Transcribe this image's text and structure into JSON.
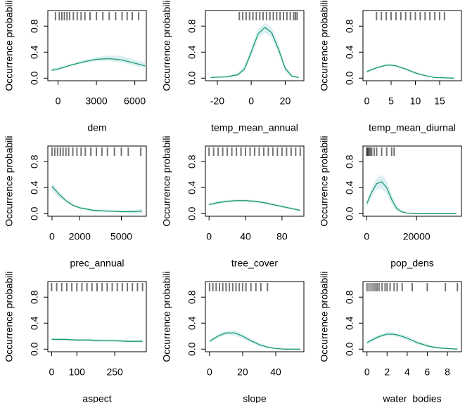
{
  "chart_data": [
    {
      "type": "line",
      "xlabel": "dem",
      "ylabel": "Occurrence probabili",
      "x": [
        -500,
        0,
        1000,
        2000,
        3000,
        4000,
        5000,
        6000,
        6800
      ],
      "values": [
        0.12,
        0.14,
        0.2,
        0.25,
        0.29,
        0.3,
        0.28,
        0.23,
        0.19
      ],
      "lower": [
        0.1,
        0.12,
        0.18,
        0.23,
        0.26,
        0.26,
        0.24,
        0.19,
        0.15
      ],
      "upper": [
        0.15,
        0.17,
        0.22,
        0.28,
        0.32,
        0.35,
        0.34,
        0.28,
        0.24
      ],
      "rug": [
        -200,
        100,
        300,
        500,
        700,
        900,
        1200,
        1500,
        1800,
        2100,
        2500,
        3000,
        3500,
        4000,
        4500,
        5000,
        5400,
        5800,
        6300
      ],
      "color": "#1a9a6a",
      "band_color": "#dcf0f4",
      "xlim": [
        -800,
        6900
      ],
      "xticks": [
        0,
        3000,
        6000
      ],
      "ylim": [
        -0.04,
        1.04
      ],
      "yticks": [
        {
          "value": 0,
          "label": "0.0"
        },
        0.4,
        0.8
      ]
    },
    {
      "type": "line",
      "xlabel": "temp_mean_annual",
      "ylabel": "Occurrence probabili",
      "x": [
        -24,
        -15,
        -8,
        -4,
        0,
        4,
        8,
        12,
        16,
        20,
        24,
        28
      ],
      "values": [
        0.01,
        0.02,
        0.05,
        0.14,
        0.4,
        0.68,
        0.78,
        0.7,
        0.45,
        0.15,
        0.03,
        0.01
      ],
      "lower": [
        0,
        0.01,
        0.03,
        0.1,
        0.33,
        0.6,
        0.7,
        0.62,
        0.37,
        0.1,
        0.01,
        0
      ],
      "upper": [
        0.02,
        0.03,
        0.08,
        0.2,
        0.48,
        0.76,
        0.85,
        0.78,
        0.53,
        0.2,
        0.05,
        0.02
      ],
      "rug": [
        -7,
        -5,
        -3,
        -1,
        1,
        3,
        5,
        7,
        9,
        11,
        13,
        15,
        17,
        19,
        21,
        23,
        25,
        26,
        27
      ],
      "color": "#1a9a6a",
      "band_color": "#dcf0f4",
      "xlim": [
        -27,
        31
      ],
      "xticks": [
        -20,
        0,
        20
      ],
      "ylim": [
        -0.04,
        1.04
      ],
      "yticks": [
        {
          "value": 0,
          "label": "0.0"
        },
        0.4,
        0.8
      ]
    },
    {
      "type": "line",
      "xlabel": "temp_mean_diurnal",
      "ylabel": "Occurrence probabili",
      "x": [
        0,
        2,
        4,
        5,
        6,
        8,
        10,
        12,
        14,
        16,
        18
      ],
      "values": [
        0.1,
        0.16,
        0.2,
        0.2,
        0.19,
        0.14,
        0.08,
        0.04,
        0.01,
        0.005,
        0
      ],
      "lower": [
        0.08,
        0.14,
        0.18,
        0.18,
        0.17,
        0.12,
        0.06,
        0.03,
        0.005,
        0,
        0
      ],
      "upper": [
        0.12,
        0.18,
        0.22,
        0.22,
        0.21,
        0.16,
        0.1,
        0.05,
        0.02,
        0.01,
        0.01
      ],
      "rug": [
        2,
        3,
        4,
        5,
        6,
        7,
        8,
        9,
        10,
        11,
        12,
        13,
        14,
        15,
        16
      ],
      "color": "#1a9a6a",
      "band_color": "#dcf0f4",
      "xlim": [
        -0.8,
        19.5
      ],
      "xticks": [
        0,
        5,
        10,
        15
      ],
      "ylim": [
        -0.04,
        1.04
      ],
      "yticks": [
        {
          "value": 0,
          "label": "0.0"
        },
        0.4,
        0.8
      ]
    },
    {
      "type": "line",
      "xlabel": "prec_annual",
      "ylabel": "Occurrence probabili",
      "x": [
        0,
        500,
        1000,
        1500,
        2000,
        3000,
        4000,
        5000,
        6000,
        6500
      ],
      "values": [
        0.42,
        0.3,
        0.2,
        0.13,
        0.09,
        0.05,
        0.04,
        0.03,
        0.03,
        0.04
      ],
      "lower": [
        0.35,
        0.25,
        0.17,
        0.11,
        0.07,
        0.03,
        0.02,
        0.01,
        0,
        0
      ],
      "upper": [
        0.48,
        0.35,
        0.23,
        0.15,
        0.11,
        0.07,
        0.06,
        0.05,
        0.06,
        0.08
      ],
      "rug": [
        0,
        200,
        400,
        600,
        800,
        1000,
        1200,
        1500,
        1800,
        2100,
        2400,
        2800,
        3200,
        3600,
        4000,
        4500,
        5000,
        5500,
        6400
      ],
      "color": "#1a9a6a",
      "band_color": "#dcf0f4",
      "xlim": [
        -300,
        6800
      ],
      "xticks": [
        0,
        2000,
        5000
      ],
      "ylim": [
        -0.04,
        1.04
      ],
      "yticks": [
        {
          "value": 0,
          "label": "0.0"
        },
        0.4,
        0.8
      ]
    },
    {
      "type": "line",
      "xlabel": "tree_cover",
      "ylabel": "Occurrence probabili",
      "x": [
        0,
        10,
        20,
        30,
        40,
        50,
        60,
        70,
        80,
        90,
        100
      ],
      "values": [
        0.14,
        0.17,
        0.19,
        0.2,
        0.2,
        0.19,
        0.17,
        0.14,
        0.11,
        0.08,
        0.05
      ],
      "lower": [
        0.12,
        0.15,
        0.17,
        0.18,
        0.18,
        0.17,
        0.15,
        0.12,
        0.09,
        0.06,
        0.03
      ],
      "upper": [
        0.16,
        0.19,
        0.21,
        0.22,
        0.22,
        0.21,
        0.19,
        0.16,
        0.13,
        0.1,
        0.07
      ],
      "rug": [
        0,
        5,
        10,
        15,
        20,
        25,
        30,
        35,
        40,
        45,
        50,
        55,
        60,
        65,
        70,
        75,
        80,
        85,
        90,
        95,
        100
      ],
      "color": "#1a9a6a",
      "band_color": "#dcf0f4",
      "xlim": [
        -4,
        104
      ],
      "xticks": [
        0,
        40,
        80
      ],
      "ylim": [
        -0.04,
        1.04
      ],
      "yticks": [
        {
          "value": 0,
          "label": "0.0"
        },
        0.4,
        0.8
      ]
    },
    {
      "type": "line",
      "xlabel": "pop_dens",
      "ylabel": "Occurrence probabili",
      "x": [
        0,
        2000,
        4000,
        6000,
        8000,
        10000,
        12000,
        14000,
        16000,
        20000,
        30000,
        36000
      ],
      "values": [
        0.15,
        0.33,
        0.46,
        0.49,
        0.4,
        0.22,
        0.08,
        0.03,
        0.01,
        0,
        0,
        0
      ],
      "lower": [
        0.1,
        0.26,
        0.37,
        0.38,
        0.3,
        0.15,
        0.04,
        0.01,
        0,
        0,
        0,
        0
      ],
      "upper": [
        0.2,
        0.4,
        0.55,
        0.6,
        0.5,
        0.3,
        0.12,
        0.05,
        0.02,
        0.01,
        0.01,
        0.01
      ],
      "rug": [
        0,
        300,
        600,
        1000,
        1500,
        2000,
        3000,
        4000,
        6000,
        8000,
        10000,
        11000
      ],
      "color": "#1a9a6a",
      "band_color": "#dcf0f4",
      "xlim": [
        -1500,
        38000
      ],
      "xticks": [
        0,
        20000
      ],
      "ylim": [
        -0.04,
        1.04
      ],
      "yticks": [
        {
          "value": 0,
          "label": "0.0"
        },
        0.4,
        0.8
      ]
    },
    {
      "type": "line",
      "xlabel": "aspect",
      "ylabel": "Occurrence probabili",
      "x": [
        0,
        50,
        100,
        150,
        200,
        250,
        300,
        360
      ],
      "values": [
        0.15,
        0.15,
        0.14,
        0.14,
        0.13,
        0.13,
        0.12,
        0.12
      ],
      "lower": [
        0.13,
        0.13,
        0.12,
        0.12,
        0.11,
        0.11,
        0.1,
        0.1
      ],
      "upper": [
        0.17,
        0.17,
        0.16,
        0.16,
        0.15,
        0.15,
        0.14,
        0.14
      ],
      "rug": [
        0,
        20,
        40,
        60,
        80,
        100,
        120,
        140,
        160,
        180,
        200,
        220,
        240,
        260,
        280,
        300,
        320,
        340,
        360
      ],
      "color": "#1a9a6a",
      "band_color": "#dcf0f4",
      "xlim": [
        -15,
        375
      ],
      "xticks": [
        0,
        100,
        250
      ],
      "ylim": [
        -0.04,
        1.04
      ],
      "yticks": [
        {
          "value": 0,
          "label": "0.0"
        },
        0.4,
        0.8
      ]
    },
    {
      "type": "line",
      "xlabel": "slope",
      "ylabel": "Occurrence probabili",
      "x": [
        0,
        5,
        10,
        15,
        20,
        25,
        30,
        35,
        40,
        45,
        50,
        55
      ],
      "values": [
        0.12,
        0.2,
        0.25,
        0.25,
        0.2,
        0.13,
        0.07,
        0.03,
        0.01,
        0,
        0,
        0
      ],
      "lower": [
        0.1,
        0.17,
        0.22,
        0.21,
        0.16,
        0.1,
        0.04,
        0.01,
        0,
        0,
        0,
        0
      ],
      "upper": [
        0.14,
        0.23,
        0.28,
        0.29,
        0.24,
        0.16,
        0.1,
        0.05,
        0.02,
        0.01,
        0.01,
        0.01
      ],
      "rug": [
        0,
        2,
        4,
        6,
        8,
        10,
        12,
        14,
        16,
        18,
        20,
        22,
        25,
        28,
        31,
        35
      ],
      "color": "#1a9a6a",
      "band_color": "#dcf0f4",
      "xlim": [
        -2.5,
        57
      ],
      "xticks": [
        0,
        20,
        40
      ],
      "ylim": [
        -0.04,
        1.04
      ],
      "yticks": [
        {
          "value": 0,
          "label": "0.0"
        },
        0.4,
        0.8
      ]
    },
    {
      "type": "line",
      "xlabel": "water_bodies",
      "ylabel": "Occurrence probabili",
      "x": [
        0,
        0.5,
        1,
        1.5,
        2,
        2.5,
        3,
        4,
        5,
        6,
        7,
        8,
        9
      ],
      "values": [
        0.1,
        0.14,
        0.18,
        0.21,
        0.23,
        0.23,
        0.22,
        0.17,
        0.1,
        0.05,
        0.02,
        0.01,
        0
      ],
      "lower": [
        0.07,
        0.11,
        0.15,
        0.18,
        0.2,
        0.2,
        0.19,
        0.14,
        0.07,
        0.03,
        0.01,
        0,
        0
      ],
      "upper": [
        0.13,
        0.17,
        0.21,
        0.24,
        0.26,
        0.26,
        0.25,
        0.2,
        0.13,
        0.08,
        0.04,
        0.02,
        0.02
      ],
      "rug": [
        0,
        0.2,
        0.4,
        0.6,
        0.8,
        1,
        1.2,
        1.5,
        1.8,
        2,
        2.3,
        2.7,
        3,
        3.5,
        4.5,
        6,
        7.8,
        9
      ],
      "color": "#1a9a6a",
      "band_color": "#dcf0f4",
      "xlim": [
        -0.4,
        9.4
      ],
      "xticks": [
        0,
        2,
        4,
        6,
        8
      ],
      "ylim": [
        -0.04,
        1.04
      ],
      "yticks": [
        {
          "value": 0,
          "label": "0.0"
        },
        0.4,
        0.8
      ]
    }
  ]
}
